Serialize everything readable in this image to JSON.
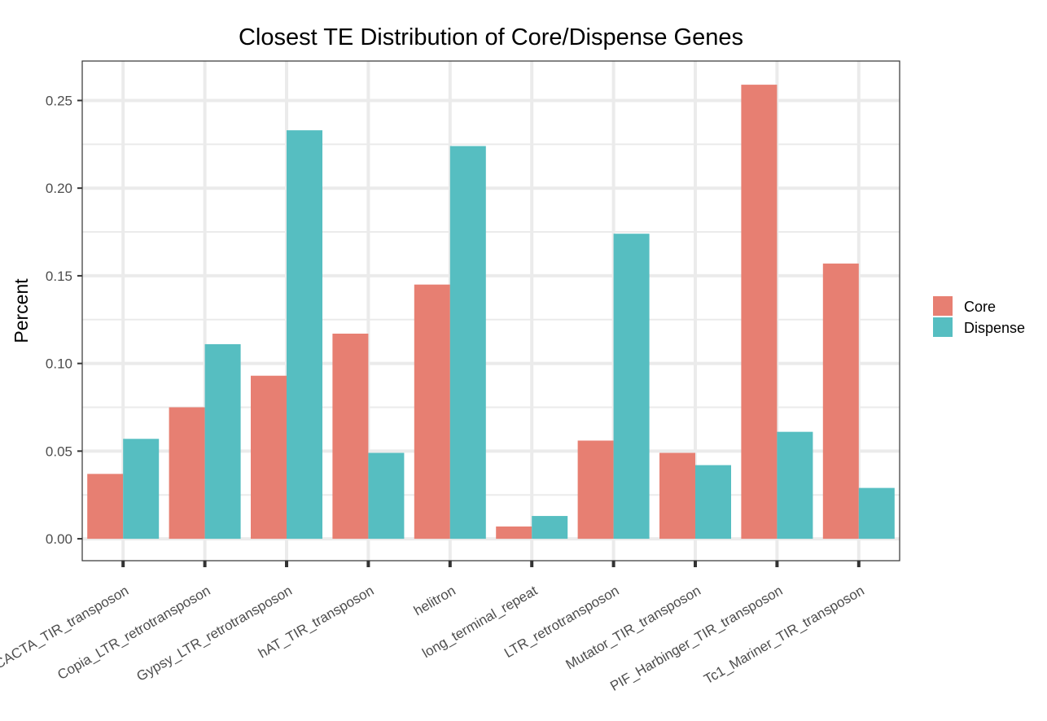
{
  "chart_data": {
    "type": "bar",
    "title": "Closest TE Distribution of Core/Dispense Genes",
    "xlabel": "",
    "ylabel": "Percent",
    "ylim": [
      -0.0125,
      0.2725
    ],
    "yticks": [
      0.0,
      0.05,
      0.1,
      0.15,
      0.2,
      0.25
    ],
    "ytick_labels": [
      "0.00",
      "0.05",
      "0.10",
      "0.15",
      "0.20",
      "0.25"
    ],
    "grid": true,
    "legend_position": "right",
    "categories": [
      "CACTA_TIR_transposon",
      "Copia_LTR_retrotransposon",
      "Gypsy_LTR_retrotransposon",
      "hAT_TIR_transposon",
      "helitron",
      "long_terminal_repeat",
      "LTR_retrotransposon",
      "Mutator_TIR_transposon",
      "PIF_Harbinger_TIR_transposon",
      "Tc1_Mariner_TIR_transposon"
    ],
    "series": [
      {
        "name": "Core",
        "color": "#E77F72",
        "values": [
          0.037,
          0.075,
          0.093,
          0.117,
          0.145,
          0.007,
          0.056,
          0.049,
          0.259,
          0.157
        ]
      },
      {
        "name": "Dispense",
        "color": "#56BEC1",
        "values": [
          0.057,
          0.111,
          0.233,
          0.049,
          0.224,
          0.013,
          0.174,
          0.042,
          0.061,
          0.029
        ]
      }
    ]
  }
}
